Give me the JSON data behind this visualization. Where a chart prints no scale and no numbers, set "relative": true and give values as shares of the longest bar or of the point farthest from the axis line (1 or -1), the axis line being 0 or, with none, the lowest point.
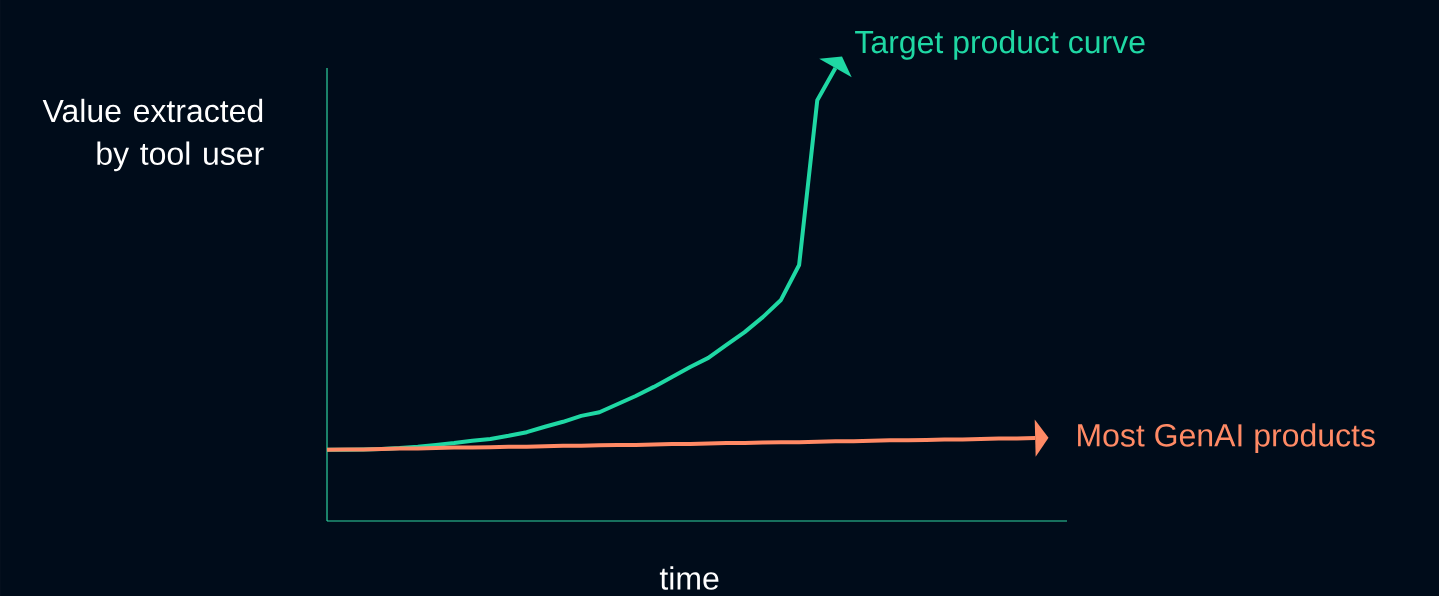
{
  "chart_data": {
    "type": "line",
    "relative": true,
    "xlabel": "time",
    "ylabel": "Value extracted by tool user",
    "categories": [
      null,
      null,
      null,
      null,
      null,
      null,
      null,
      null,
      null,
      null,
      null,
      null,
      null,
      null,
      null,
      null,
      null,
      null,
      null,
      null,
      null,
      null,
      null,
      null,
      null,
      null,
      null,
      null,
      null,
      null,
      null,
      null,
      null,
      null,
      null,
      null,
      null,
      null,
      null,
      null
    ],
    "series": [
      {
        "name": "Target product curve",
        "color": "#1fd8a4",
        "values": [
          0.157,
          0.157,
          0.158,
          0.159,
          0.161,
          0.164,
          0.168,
          0.172,
          0.177,
          0.181,
          0.188,
          0.196,
          0.208,
          0.219,
          0.232,
          0.24,
          0.258,
          0.276,
          0.296,
          0.318,
          0.34,
          0.36,
          0.389,
          0.417,
          0.45,
          0.488,
          0.565,
          0.929,
          1.0,
          null,
          null,
          null,
          null,
          null,
          null,
          null,
          null,
          null,
          null,
          null
        ]
      },
      {
        "name": "Most GenAI products",
        "color": "#ff8a65",
        "values": [
          0.157,
          0.158,
          0.158,
          0.159,
          0.16,
          0.16,
          0.161,
          0.162,
          0.162,
          0.163,
          0.164,
          0.164,
          0.165,
          0.166,
          0.166,
          0.167,
          0.168,
          0.168,
          0.169,
          0.17,
          0.17,
          0.171,
          0.172,
          0.172,
          0.173,
          0.174,
          0.174,
          0.175,
          0.176,
          0.176,
          0.177,
          0.178,
          0.178,
          0.179,
          0.18,
          0.18,
          0.181,
          0.182,
          0.182,
          0.183
        ]
      }
    ]
  }
}
